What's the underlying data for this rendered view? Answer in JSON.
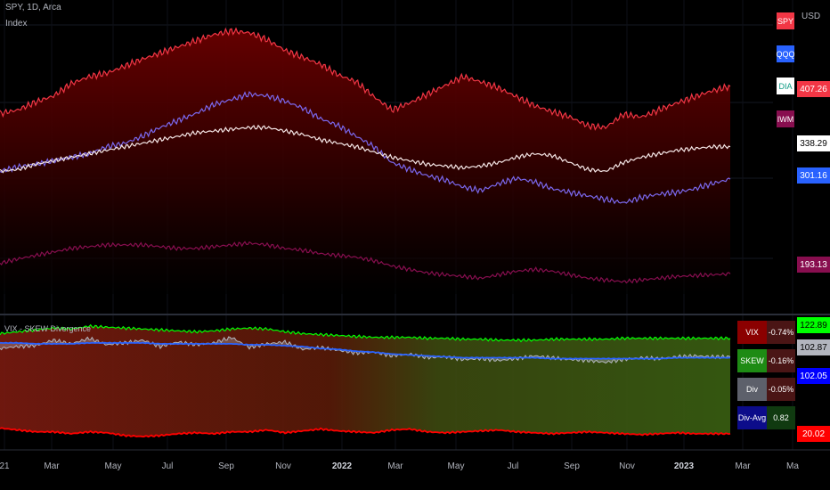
{
  "header": {
    "symbol_line": "SPY, 1D, Arca",
    "sub_line": "Index",
    "currency": "USD"
  },
  "legend": [
    {
      "label": "SPY",
      "bg": "#f23645",
      "fg": "#ffffff"
    },
    {
      "label": "QQQ",
      "bg": "#2962ff",
      "fg": "#ffffff"
    },
    {
      "label": "DIA",
      "bg": "#ffffff",
      "fg": "#089981"
    },
    {
      "label": "IWM",
      "bg": "#880e4f",
      "fg": "#ffffff"
    }
  ],
  "price_tags": [
    {
      "value": "407.26",
      "bg": "#f23645",
      "fg": "#ffffff"
    },
    {
      "value": "338.29",
      "bg": "#ffffff",
      "fg": "#000000"
    },
    {
      "value": "301.16",
      "bg": "#2962ff",
      "fg": "#ffffff"
    },
    {
      "value": "193.13",
      "bg": "#880e4f",
      "fg": "#ffffff"
    }
  ],
  "indicator": {
    "title": "VIX - SKEW Divergence",
    "table": [
      {
        "label": "VIX",
        "value": "-0.74%",
        "label_bg": "#8b0000",
        "value_bg": "#4a1515",
        "fg": "#ffffff"
      },
      {
        "label": "SKEW",
        "value": "-0.16%",
        "label_bg": "#1e8b14",
        "value_bg": "#4a1515",
        "fg": "#ffffff"
      },
      {
        "label": "Div",
        "value": "-0.05%",
        "label_bg": "#5d606b",
        "value_bg": "#4a1515",
        "fg": "#ffffff"
      },
      {
        "label": "Div-Avg",
        "value": "0.82",
        "label_bg": "#0c0c8a",
        "value_bg": "#103a10",
        "fg": "#ffffff"
      }
    ],
    "tags": [
      {
        "value": "122.89",
        "bg": "#00ff00",
        "fg": "#000000"
      },
      {
        "value": "102.87",
        "bg": "#b2b5be",
        "fg": "#000000"
      },
      {
        "value": "102.05",
        "bg": "#0000ff",
        "fg": "#ffffff"
      },
      {
        "value": "20.02",
        "bg": "#ff0000",
        "fg": "#ffffff"
      }
    ]
  },
  "x_axis": [
    {
      "label": "21",
      "bold": false
    },
    {
      "label": "Mar",
      "bold": false
    },
    {
      "label": "May",
      "bold": false
    },
    {
      "label": "Jul",
      "bold": false
    },
    {
      "label": "Sep",
      "bold": false
    },
    {
      "label": "Nov",
      "bold": false
    },
    {
      "label": "2022",
      "bold": true
    },
    {
      "label": "Mar",
      "bold": false
    },
    {
      "label": "May",
      "bold": false
    },
    {
      "label": "Jul",
      "bold": false
    },
    {
      "label": "Sep",
      "bold": false
    },
    {
      "label": "Nov",
      "bold": false
    },
    {
      "label": "2023",
      "bold": true
    },
    {
      "label": "Mar",
      "bold": false
    },
    {
      "label": "Ma",
      "bold": false
    }
  ],
  "chart_data": [
    {
      "type": "line",
      "x_range": [
        "2021-01",
        "2023-02"
      ],
      "series": [
        {
          "name": "SPY",
          "color": "#f23645",
          "last": 407.26,
          "values": [
            376,
            380,
            389,
            396,
            410,
            418,
            422,
            430,
            438,
            445,
            452,
            459,
            466,
            470,
            468,
            460,
            448,
            440,
            432,
            420,
            412,
            395,
            380,
            388,
            398,
            408,
            418,
            412,
            405,
            395,
            385,
            378,
            372,
            362,
            360,
            375,
            372,
            380,
            388,
            395,
            402,
            407
          ]
        },
        {
          "name": "QQQ",
          "color": "#7b68ee",
          "last": 301.16,
          "values": [
            310,
            315,
            318,
            322,
            326,
            330,
            338,
            342,
            350,
            360,
            368,
            376,
            386,
            392,
            398,
            396,
            390,
            382,
            370,
            362,
            350,
            338,
            320,
            312,
            305,
            300,
            292,
            288,
            296,
            302,
            298,
            290,
            286,
            282,
            278,
            274,
            280,
            284,
            286,
            290,
            296,
            301
          ]
        },
        {
          "name": "DIA",
          "color": "#f5e6e6",
          "last": 338.29,
          "values": [
            310,
            312,
            318,
            322,
            326,
            330,
            334,
            338,
            342,
            346,
            350,
            354,
            356,
            358,
            360,
            360,
            356,
            352,
            346,
            342,
            338,
            332,
            326,
            322,
            318,
            316,
            314,
            316,
            320,
            326,
            330,
            328,
            320,
            312,
            310,
            320,
            326,
            330,
            334,
            336,
            338,
            338
          ]
        },
        {
          "name": "IWM",
          "color": "#880e4f",
          "last": 193.13,
          "values": [
            205,
            210,
            214,
            218,
            222,
            224,
            226,
            226,
            226,
            224,
            222,
            222,
            224,
            226,
            228,
            226,
            222,
            220,
            216,
            214,
            212,
            208,
            202,
            198,
            194,
            192,
            190,
            188,
            192,
            196,
            198,
            196,
            192,
            188,
            186,
            184,
            186,
            188,
            190,
            191,
            192,
            193
          ]
        }
      ]
    },
    {
      "type": "area",
      "title": "VIX - SKEW Divergence",
      "series": [
        {
          "name": "SKEW",
          "color": "#00ff00",
          "last": 122.89,
          "values": [
            128,
            130,
            132,
            134,
            133,
            136,
            135,
            134,
            133,
            132,
            131,
            130,
            131,
            133,
            134,
            133,
            130,
            128,
            127,
            126,
            125,
            124,
            124,
            124,
            123,
            123,
            122,
            122,
            121,
            121,
            121,
            122,
            122,
            122,
            122,
            123,
            123,
            123,
            123,
            123,
            123,
            123
          ]
        },
        {
          "name": "Div",
          "color": "#b2b5be",
          "last": 102.87,
          "values": [
            112,
            114,
            115,
            121,
            117,
            123,
            116,
            118,
            121,
            114,
            119,
            116,
            118,
            124,
            113,
            117,
            119,
            111,
            113,
            110,
            107,
            108,
            104,
            106,
            102,
            103,
            100,
            101,
            99,
            101,
            104,
            102,
            100,
            99,
            97,
            100,
            102,
            101,
            103,
            104,
            103,
            103
          ]
        },
        {
          "name": "Div-Avg",
          "color": "#2962ff",
          "last": 102.05,
          "values": [
            118,
            118,
            117,
            117,
            117,
            118,
            118,
            118,
            118,
            117,
            117,
            117,
            117,
            117,
            116,
            116,
            115,
            114,
            112,
            111,
            109,
            108,
            106,
            105,
            104,
            103,
            102,
            102,
            102,
            102,
            102,
            101,
            101,
            101,
            101,
            101,
            101,
            101,
            102,
            102,
            102,
            102
          ]
        },
        {
          "name": "VIX",
          "color": "#ff0000",
          "last": 20.02,
          "values": [
            26,
            24,
            22,
            22,
            20,
            22,
            21,
            18,
            17,
            18,
            20,
            21,
            20,
            22,
            22,
            24,
            21,
            23,
            25,
            23,
            22,
            21,
            24,
            25,
            22,
            21,
            22,
            23,
            24,
            22,
            21,
            20,
            21,
            22,
            21,
            20,
            19,
            20,
            21,
            20,
            20,
            20
          ]
        }
      ]
    }
  ]
}
